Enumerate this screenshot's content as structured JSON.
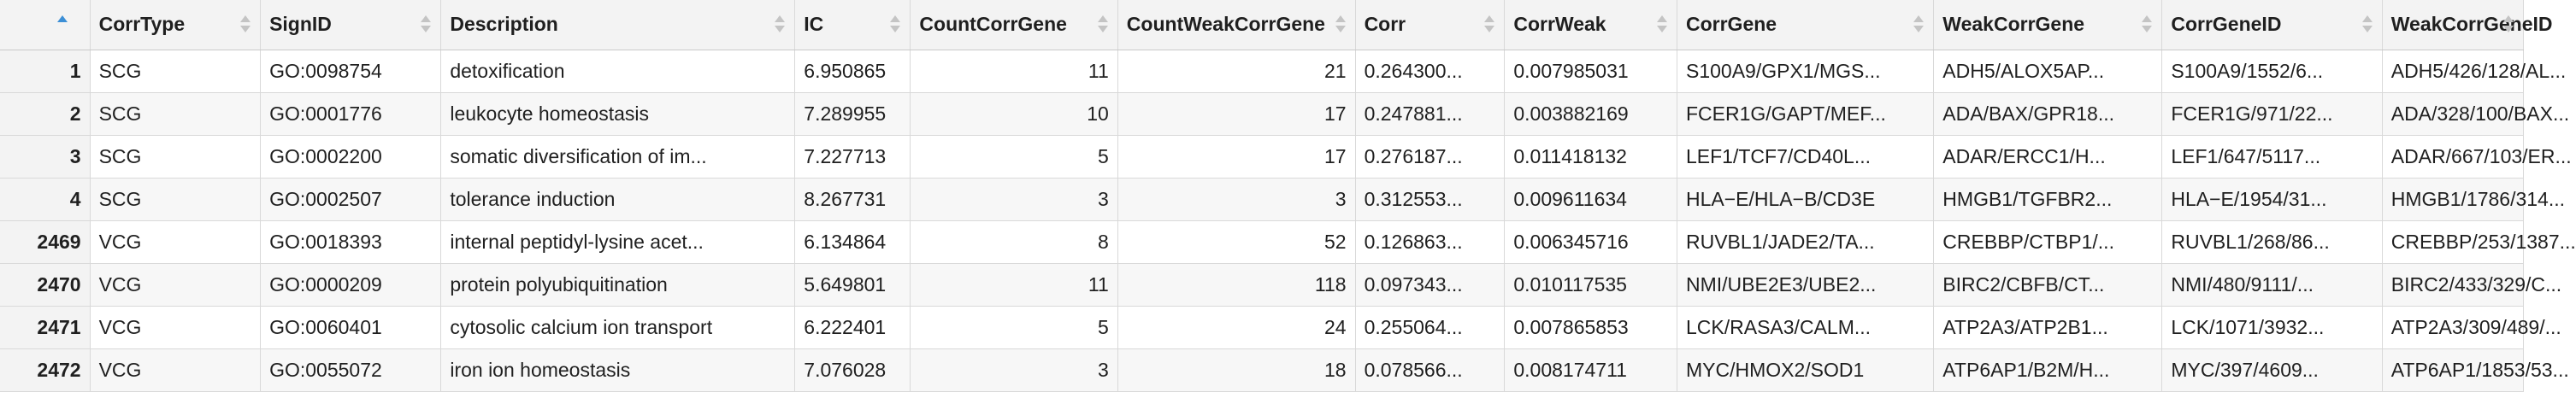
{
  "table": {
    "columns": [
      "CorrType",
      "SignID",
      "Description",
      "IC",
      "CountCorrGene",
      "CountWeakCorrGene",
      "Corr",
      "CorrWeak",
      "CorrGene",
      "WeakCorrGene",
      "CorrGeneID",
      "WeakCorrGeneID"
    ],
    "sort_column": "rownum",
    "sort_direction": "ascending",
    "rows": [
      {
        "rownum": "1",
        "cells": [
          "SCG",
          "GO:0098754",
          "detoxification",
          "6.950865",
          "11",
          "21",
          "0.264300...",
          "0.007985031",
          "S100A9/GPX1/MGS...",
          "ADH5/ALOX5AP...",
          "S100A9/1552/6...",
          "ADH5/426/128/AL..."
        ]
      },
      {
        "rownum": "2",
        "cells": [
          "SCG",
          "GO:0001776",
          "leukocyte homeostasis",
          "7.289955",
          "10",
          "17",
          "0.247881...",
          "0.003882169",
          "FCER1G/GAPT/MEF...",
          "ADA/BAX/GPR18...",
          "FCER1G/971/22...",
          "ADA/328/100/BAX..."
        ]
      },
      {
        "rownum": "3",
        "cells": [
          "SCG",
          "GO:0002200",
          "somatic diversification of im...",
          "7.227713",
          "5",
          "17",
          "0.276187...",
          "0.011418132",
          "LEF1/TCF7/CD40L...",
          "ADAR/ERCC1/H...",
          "LEF1/647/5117...",
          "ADAR/667/103/ER..."
        ]
      },
      {
        "rownum": "4",
        "cells": [
          "SCG",
          "GO:0002507",
          "tolerance induction",
          "8.267731",
          "3",
          "3",
          "0.312553...",
          "0.009611634",
          "HLA−E/HLA−B/CD3E",
          "HMGB1/TGFBR2...",
          "HLA−E/1954/31...",
          "HMGB1/1786/314..."
        ]
      },
      {
        "rownum": "2469",
        "cells": [
          "VCG",
          "GO:0018393",
          "internal peptidyl-lysine acet...",
          "6.134864",
          "8",
          "52",
          "0.126863...",
          "0.006345716",
          "RUVBL1/JADE2/TA...",
          "CREBBP/CTBP1/...",
          "RUVBL1/268/86...",
          "CREBBP/253/1387..."
        ]
      },
      {
        "rownum": "2470",
        "cells": [
          "VCG",
          "GO:0000209",
          "protein polyubiquitination",
          "5.649801",
          "11",
          "118",
          "0.097343...",
          "0.010117535",
          "NMI/UBE2E3/UBE2...",
          "BIRC2/CBFB/CT...",
          "NMI/480/9111/...",
          "BIRC2/433/329/C..."
        ]
      },
      {
        "rownum": "2471",
        "cells": [
          "VCG",
          "GO:0060401",
          "cytosolic calcium ion transport",
          "6.222401",
          "5",
          "24",
          "0.255064...",
          "0.007865853",
          "LCK/RASA3/CALM...",
          "ATP2A3/ATP2B1...",
          "LCK/1071/3932...",
          "ATP2A3/309/489/..."
        ]
      },
      {
        "rownum": "2472",
        "cells": [
          "VCG",
          "GO:0055072",
          "iron ion homeostasis",
          "7.076028",
          "3",
          "18",
          "0.078566...",
          "0.008174711",
          "MYC/HMOX2/SOD1",
          "ATP6AP1/B2M/H...",
          "MYC/397/4609...",
          "ATP6AP1/1853/53..."
        ]
      }
    ]
  },
  "colors": {
    "header_bg": "#f3f3f3",
    "stripe_bg": "#f7f7f7",
    "border": "#d9d9d9",
    "sort_active": "#3c8fd6"
  }
}
